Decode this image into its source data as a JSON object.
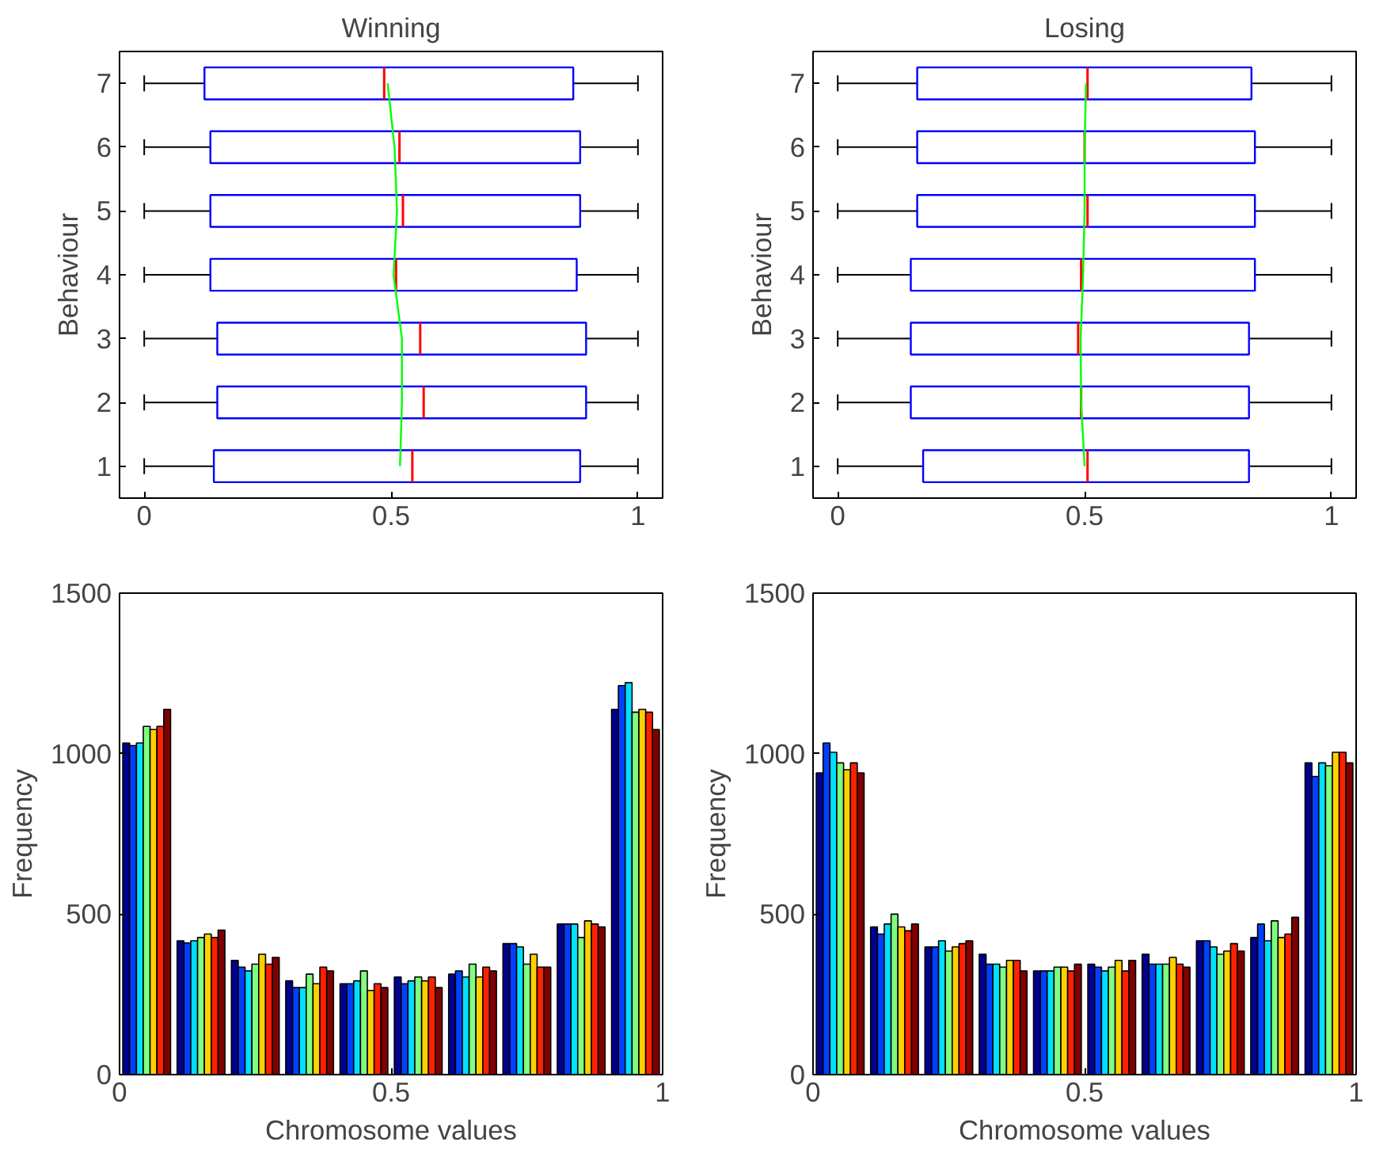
{
  "chart_data": [
    {
      "type": "box",
      "orientation": "horizontal",
      "title": "Winning",
      "ylabel": "Behaviour",
      "categories": [
        "7",
        "6",
        "5",
        "4",
        "3",
        "2",
        "1"
      ],
      "xlim": [
        -0.05,
        1.05
      ],
      "xticks": [
        0,
        0.5,
        1
      ],
      "grid": false,
      "color": "#0000ff",
      "boxes": [
        {
          "low": 0,
          "q1": 0.122,
          "median": 0.486,
          "q3": 0.869,
          "high": 1
        },
        {
          "low": 0,
          "q1": 0.134,
          "median": 0.517,
          "q3": 0.883,
          "high": 1
        },
        {
          "low": 0,
          "q1": 0.134,
          "median": 0.524,
          "q3": 0.883,
          "high": 1
        },
        {
          "low": 0,
          "q1": 0.134,
          "median": 0.51,
          "q3": 0.876,
          "high": 1
        },
        {
          "low": 0,
          "q1": 0.148,
          "median": 0.559,
          "q3": 0.895,
          "high": 1
        },
        {
          "low": 0,
          "q1": 0.148,
          "median": 0.566,
          "q3": 0.895,
          "high": 1
        },
        {
          "low": 0,
          "q1": 0.141,
          "median": 0.543,
          "q3": 0.883,
          "high": 1
        }
      ],
      "series": [
        {
          "type": "line",
          "color": "#00ff00",
          "values": [
            0.493,
            0.507,
            0.512,
            0.505,
            0.522,
            0.522,
            0.518
          ]
        }
      ]
    },
    {
      "type": "box",
      "orientation": "horizontal",
      "title": "Losing",
      "ylabel": "Behaviour",
      "categories": [
        "7",
        "6",
        "5",
        "4",
        "3",
        "2",
        "1"
      ],
      "xlim": [
        -0.05,
        1.05
      ],
      "xticks": [
        0,
        0.5,
        1
      ],
      "grid": false,
      "color": "#0000ff",
      "boxes": [
        {
          "low": 0,
          "q1": 0.161,
          "median": 0.506,
          "q3": 0.838,
          "high": 1
        },
        {
          "low": 0,
          "q1": 0.161,
          "median": 0.5,
          "q3": 0.845,
          "high": 1
        },
        {
          "low": 0,
          "q1": 0.161,
          "median": 0.506,
          "q3": 0.845,
          "high": 1
        },
        {
          "low": 0,
          "q1": 0.148,
          "median": 0.493,
          "q3": 0.845,
          "high": 1
        },
        {
          "low": 0,
          "q1": 0.148,
          "median": 0.487,
          "q3": 0.833,
          "high": 1
        },
        {
          "low": 0,
          "q1": 0.148,
          "median": 0.493,
          "q3": 0.833,
          "high": 1
        },
        {
          "low": 0,
          "q1": 0.173,
          "median": 0.506,
          "q3": 0.833,
          "high": 1
        }
      ],
      "series": [
        {
          "type": "line",
          "color": "#00ff00",
          "values": [
            0.503,
            0.5,
            0.5,
            0.497,
            0.492,
            0.493,
            0.5
          ]
        }
      ]
    },
    {
      "type": "histogram",
      "xlabel": "Chromosome values",
      "ylabel": "Frequency",
      "bins": [
        0,
        0.1,
        0.2,
        0.3,
        0.4,
        0.5,
        0.6,
        0.7,
        0.8,
        0.9,
        1
      ],
      "xlim": [
        0,
        1
      ],
      "xticks": [
        0,
        0.5,
        1
      ],
      "ylim": [
        0,
        1500
      ],
      "yticks": [
        0,
        500,
        1000,
        1500
      ],
      "grid": false,
      "series": [
        {
          "color": "#000090",
          "values": [
            1033,
            417,
            356,
            292,
            283,
            304,
            313,
            408,
            469,
            1138
          ]
        },
        {
          "color": "#0040ff",
          "values": [
            1025,
            410,
            335,
            271,
            283,
            283,
            323,
            408,
            469,
            1212
          ]
        },
        {
          "color": "#00e0ff",
          "values": [
            1033,
            417,
            323,
            271,
            292,
            292,
            304,
            398,
            469,
            1221
          ]
        },
        {
          "color": "#80ff80",
          "values": [
            1085,
            427,
            344,
            313,
            323,
            304,
            344,
            344,
            427,
            1129
          ]
        },
        {
          "color": "#ffd000",
          "values": [
            1075,
            438,
            375,
            283,
            262,
            292,
            304,
            375,
            479,
            1138
          ]
        },
        {
          "color": "#ff2000",
          "values": [
            1085,
            427,
            344,
            335,
            283,
            304,
            335,
            335,
            469,
            1129
          ]
        },
        {
          "color": "#800000",
          "values": [
            1138,
            450,
            365,
            323,
            271,
            271,
            323,
            335,
            460,
            1075
          ]
        }
      ]
    },
    {
      "type": "histogram",
      "xlabel": "Chromosome values",
      "ylabel": "Frequency",
      "bins": [
        0,
        0.1,
        0.2,
        0.3,
        0.4,
        0.5,
        0.6,
        0.7,
        0.8,
        0.9,
        1
      ],
      "xlim": [
        0,
        1
      ],
      "xticks": [
        0,
        0.5,
        1
      ],
      "ylim": [
        0,
        1500
      ],
      "yticks": [
        0,
        500,
        1000,
        1500
      ],
      "grid": false,
      "series": [
        {
          "color": "#000090",
          "values": [
            940,
            460,
            398,
            375,
            323,
            344,
            375,
            417,
            427,
            971
          ]
        },
        {
          "color": "#0040ff",
          "values": [
            1033,
            438,
            398,
            344,
            323,
            335,
            344,
            417,
            469,
            929
          ]
        },
        {
          "color": "#00e0ff",
          "values": [
            1004,
            469,
            417,
            344,
            323,
            323,
            344,
            398,
            417,
            971
          ]
        },
        {
          "color": "#80ff80",
          "values": [
            971,
            500,
            385,
            335,
            335,
            335,
            344,
            375,
            479,
            962
          ]
        },
        {
          "color": "#ffd000",
          "values": [
            950,
            460,
            398,
            356,
            335,
            356,
            365,
            385,
            427,
            1004
          ]
        },
        {
          "color": "#ff2000",
          "values": [
            971,
            448,
            408,
            356,
            323,
            323,
            344,
            408,
            438,
            1004
          ]
        },
        {
          "color": "#800000",
          "values": [
            940,
            469,
            417,
            323,
            344,
            356,
            335,
            385,
            490,
            971
          ]
        }
      ]
    }
  ]
}
